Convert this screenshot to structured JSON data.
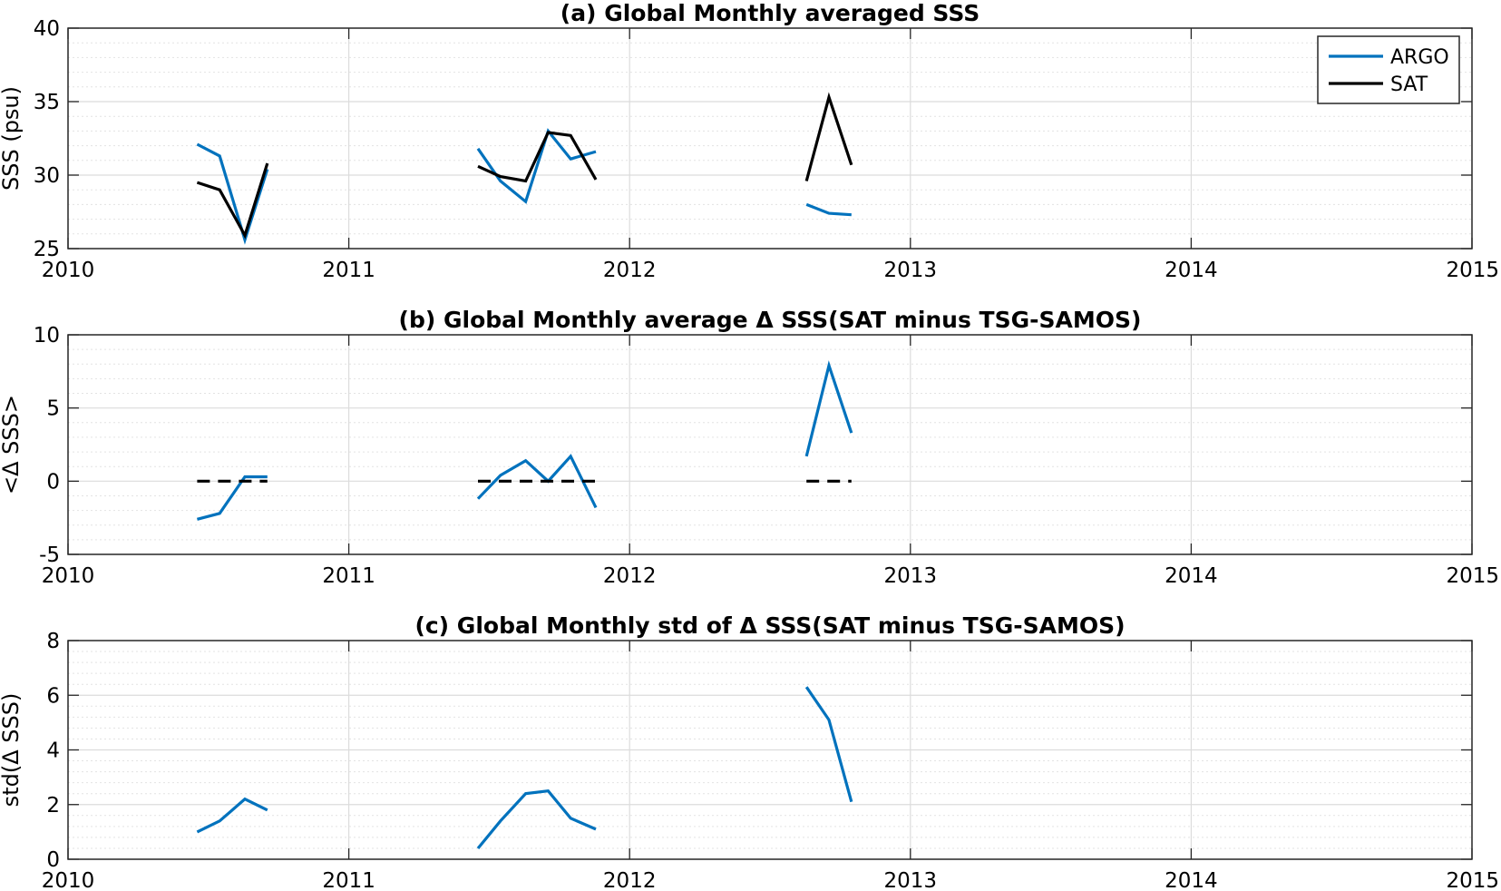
{
  "chart_data": [
    {
      "type": "line",
      "title": "(a) Global Monthly averaged SSS",
      "xlabel": "",
      "ylabel": "SSS (psu)",
      "xlim": [
        2010,
        2015
      ],
      "ylim": [
        25,
        40
      ],
      "xticks": [
        2010,
        2011,
        2012,
        2013,
        2014,
        2015
      ],
      "yticks": [
        25,
        30,
        35,
        40
      ],
      "grid": true,
      "legend": "top-right",
      "series": [
        {
          "name": "ARGO",
          "color": "#0072BD",
          "style": "solid",
          "segments": [
            [
              [
                2010.46,
                32.1
              ],
              [
                2010.54,
                31.3
              ],
              [
                2010.63,
                25.6
              ],
              [
                2010.71,
                30.4
              ]
            ],
            [
              [
                2011.46,
                31.8
              ],
              [
                2011.54,
                29.6
              ],
              [
                2011.63,
                28.2
              ],
              [
                2011.71,
                33.0
              ],
              [
                2011.79,
                31.1
              ],
              [
                2011.88,
                31.6
              ]
            ],
            [
              [
                2012.63,
                28.0
              ],
              [
                2012.71,
                27.4
              ],
              [
                2012.79,
                27.3
              ]
            ]
          ]
        },
        {
          "name": "SAT",
          "color": "#000000",
          "style": "solid",
          "segments": [
            [
              [
                2010.46,
                29.5
              ],
              [
                2010.54,
                29.0
              ],
              [
                2010.63,
                25.9
              ],
              [
                2010.71,
                30.8
              ]
            ],
            [
              [
                2011.46,
                30.6
              ],
              [
                2011.54,
                29.9
              ],
              [
                2011.63,
                29.6
              ],
              [
                2011.71,
                32.9
              ],
              [
                2011.79,
                32.7
              ],
              [
                2011.88,
                29.7
              ]
            ],
            [
              [
                2012.63,
                29.6
              ],
              [
                2012.71,
                35.3
              ],
              [
                2012.79,
                30.7
              ]
            ]
          ]
        }
      ]
    },
    {
      "type": "line",
      "title": "(b) Global Monthly average Δ SSS(SAT minus TSG-SAMOS)",
      "xlabel": "",
      "ylabel": "<Δ SSS>",
      "xlim": [
        2010,
        2015
      ],
      "ylim": [
        -5,
        10
      ],
      "xticks": [
        2010,
        2011,
        2012,
        2013,
        2014,
        2015
      ],
      "yticks": [
        -5,
        0,
        5,
        10
      ],
      "grid": true,
      "series": [
        {
          "color": "#0072BD",
          "style": "solid",
          "segments": [
            [
              [
                2010.46,
                -2.6
              ],
              [
                2010.54,
                -2.2
              ],
              [
                2010.63,
                0.3
              ],
              [
                2010.71,
                0.3
              ]
            ],
            [
              [
                2011.46,
                -1.2
              ],
              [
                2011.54,
                0.4
              ],
              [
                2011.63,
                1.4
              ],
              [
                2011.71,
                0.0
              ],
              [
                2011.79,
                1.7
              ],
              [
                2011.88,
                -1.8
              ]
            ],
            [
              [
                2012.63,
                1.7
              ],
              [
                2012.71,
                7.9
              ],
              [
                2012.79,
                3.3
              ]
            ]
          ]
        },
        {
          "color": "#000000",
          "style": "dashed",
          "segments": [
            [
              [
                2010.46,
                0.0
              ],
              [
                2010.71,
                0.0
              ]
            ],
            [
              [
                2011.46,
                0.0
              ],
              [
                2011.88,
                0.0
              ]
            ],
            [
              [
                2012.63,
                0.0
              ],
              [
                2012.79,
                0.0
              ]
            ]
          ]
        }
      ]
    },
    {
      "type": "line",
      "title": "(c) Global Monthly std of Δ SSS(SAT minus TSG-SAMOS)",
      "xlabel": "",
      "ylabel": "std(Δ SSS)",
      "xlim": [
        2010,
        2015
      ],
      "ylim": [
        0,
        8
      ],
      "xticks": [
        2010,
        2011,
        2012,
        2013,
        2014,
        2015
      ],
      "yticks": [
        0,
        2,
        4,
        6,
        8
      ],
      "grid": true,
      "series": [
        {
          "color": "#0072BD",
          "style": "solid",
          "segments": [
            [
              [
                2010.46,
                1.0
              ],
              [
                2010.54,
                1.4
              ],
              [
                2010.63,
                2.2
              ],
              [
                2010.71,
                1.8
              ]
            ],
            [
              [
                2011.46,
                0.4
              ],
              [
                2011.54,
                1.4
              ],
              [
                2011.63,
                2.4
              ],
              [
                2011.71,
                2.5
              ],
              [
                2011.79,
                1.5
              ],
              [
                2011.88,
                1.1
              ]
            ],
            [
              [
                2012.63,
                6.3
              ],
              [
                2012.71,
                5.1
              ],
              [
                2012.79,
                2.1
              ]
            ]
          ]
        }
      ]
    }
  ]
}
